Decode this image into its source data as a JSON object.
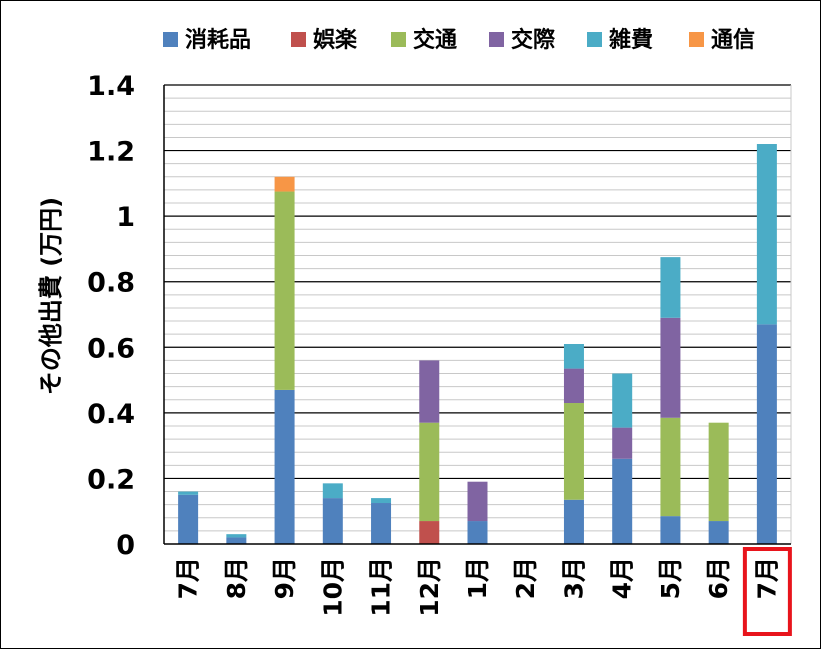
{
  "chart_data": {
    "type": "bar",
    "stacked": true,
    "ylabel": "その他出費 (万円)",
    "ylim": [
      0,
      1.4
    ],
    "yticks": [
      "0",
      "0.2",
      "0.4",
      "0.6",
      "0.8",
      "1",
      "1.2",
      "1.4"
    ],
    "categories": [
      "7月",
      "8月",
      "9月",
      "10月",
      "11月",
      "12月",
      "1月",
      "2月",
      "3月",
      "4月",
      "5月",
      "6月",
      "7月"
    ],
    "legend_position": "top",
    "highlighted_category_index": 12,
    "highlight_color": "#e8141c",
    "series": [
      {
        "name": "消耗品",
        "color": "#4f81bd",
        "values": [
          0.15,
          0.02,
          0.47,
          0.14,
          0.125,
          0.0,
          0.07,
          0.0,
          0.135,
          0.26,
          0.085,
          0.07,
          0.67
        ]
      },
      {
        "name": "娯楽",
        "color": "#c0504d",
        "values": [
          0.0,
          0.0,
          0.0,
          0.0,
          0.0,
          0.07,
          0.0,
          0.0,
          0.0,
          0.0,
          0.0,
          0.0,
          0.0
        ]
      },
      {
        "name": "交通",
        "color": "#9bbb59",
        "values": [
          0.0,
          0.0,
          0.605,
          0.0,
          0.0,
          0.3,
          0.0,
          0.0,
          0.295,
          0.0,
          0.3,
          0.3,
          0.0
        ]
      },
      {
        "name": "交際",
        "color": "#8064a2",
        "values": [
          0.0,
          0.0,
          0.0,
          0.0,
          0.0,
          0.19,
          0.12,
          0.0,
          0.105,
          0.095,
          0.305,
          0.0,
          0.0
        ]
      },
      {
        "name": "雑費",
        "color": "#4bacc6",
        "values": [
          0.01,
          0.01,
          0.0,
          0.045,
          0.015,
          0.0,
          0.0,
          0.0,
          0.075,
          0.165,
          0.185,
          0.0,
          0.55
        ]
      },
      {
        "name": "通信",
        "color": "#f79646",
        "values": [
          0.0,
          0.0,
          0.045,
          0.0,
          0.0,
          0.0,
          0.0,
          0.0,
          0.0,
          0.0,
          0.0,
          0.0,
          0.0
        ]
      }
    ]
  }
}
